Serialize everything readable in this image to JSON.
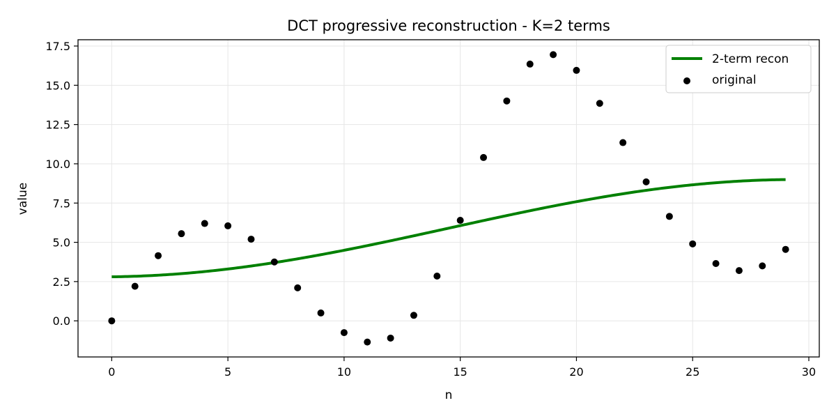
{
  "chart_data": {
    "type": "line",
    "title": "DCT progressive reconstruction - K=2 terms",
    "xlabel": "n",
    "ylabel": "value",
    "xlim": [
      -1.45,
      30.45
    ],
    "ylim": [
      -2.3,
      17.9
    ],
    "x_ticks": [
      0,
      5,
      10,
      15,
      20,
      25,
      30
    ],
    "x_tick_labels": [
      "0",
      "5",
      "10",
      "15",
      "20",
      "25",
      "30"
    ],
    "y_ticks": [
      0.0,
      2.5,
      5.0,
      7.5,
      10.0,
      12.5,
      15.0,
      17.5
    ],
    "y_tick_labels": [
      "0.0",
      "2.5",
      "5.0",
      "7.5",
      "10.0",
      "12.5",
      "15.0",
      "17.5"
    ],
    "grid": true,
    "legend_position": "top-right",
    "series": [
      {
        "name": "2-term recon",
        "kind": "line",
        "color": "#008000",
        "dct_mean": 5.9,
        "dct_amplitude": 3.1,
        "n_points": 30
      },
      {
        "name": "original",
        "kind": "scatter",
        "color": "#000000",
        "x": [
          0,
          1,
          2,
          3,
          4,
          5,
          6,
          7,
          8,
          9,
          10,
          11,
          12,
          13,
          14,
          15,
          16,
          17,
          18,
          19,
          20,
          21,
          22,
          23,
          24,
          25,
          26,
          27,
          28,
          29
        ],
        "values": [
          0.0,
          2.2,
          4.15,
          5.55,
          6.2,
          6.05,
          5.2,
          3.75,
          2.1,
          0.5,
          -0.75,
          -1.35,
          -1.1,
          0.35,
          2.85,
          6.4,
          10.4,
          14.0,
          16.35,
          16.95,
          15.95,
          13.85,
          11.35,
          8.85,
          6.65,
          4.9,
          3.65,
          3.2,
          3.5,
          4.55
        ]
      }
    ]
  }
}
